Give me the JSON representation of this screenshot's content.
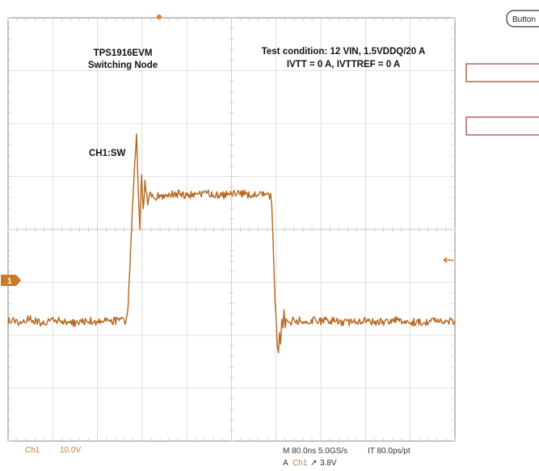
{
  "chart_data": {
    "type": "line",
    "title": "",
    "xlabel": "",
    "ylabel": "",
    "xlim": [
      0,
      800
    ],
    "ylim": [
      -11.3,
      28.7
    ],
    "grid": true,
    "grid_divisions": {
      "x": 10,
      "y": 8
    },
    "series": [
      {
        "color": "#b5651d",
        "x": [
          0,
          20,
          40,
          60,
          80,
          100,
          120,
          140,
          160,
          180,
          210,
          215,
          218,
          221,
          224,
          227,
          230,
          233,
          236,
          239,
          242,
          245,
          250,
          255,
          260,
          270,
          280,
          300,
          320,
          340,
          360,
          380,
          400,
          420,
          440,
          460,
          470,
          472,
          474,
          476,
          478,
          480,
          482,
          484,
          486,
          488,
          490,
          492,
          494,
          496,
          498,
          500,
          502,
          505,
          510,
          515,
          520,
          530,
          540,
          560,
          580,
          600,
          620,
          640,
          660,
          680,
          700,
          720,
          740,
          760,
          780,
          800
        ],
        "y": [
          0.1,
          0.0,
          0.2,
          -0.1,
          0.1,
          0.0,
          -0.2,
          0.1,
          0.0,
          0.1,
          0.0,
          1.5,
          5.0,
          9.0,
          12.0,
          15.3,
          18.0,
          12.0,
          9.0,
          14.0,
          10.5,
          13.2,
          11.0,
          12.2,
          11.5,
          12.0,
          11.8,
          12.1,
          11.9,
          12.0,
          12.1,
          11.9,
          12.0,
          12.1,
          11.9,
          12.0,
          11.8,
          11.0,
          8.0,
          5.0,
          2.0,
          0.0,
          -2.0,
          -3.0,
          -1.0,
          -2.2,
          0.5,
          -0.8,
          0.8,
          -0.4,
          0.5,
          -0.2,
          0.2,
          -0.1,
          0.1,
          0.0,
          0.1,
          -0.1,
          0.1,
          0.0,
          0.1,
          -0.1,
          0.0,
          0.1,
          -0.1,
          0.0,
          0.1,
          0.0,
          -0.1,
          0.1,
          0.0,
          0.1
        ]
      }
    ],
    "annotations": {
      "device_title": [
        "TPS1916EVM",
        "Switching Node"
      ],
      "test_condition": [
        "Test condition: 12 VIN, 1.5VDDQ/20 A",
        "IVTT = 0 A, IVTTREF = 0 A"
      ],
      "channel_label": "CH1:SW"
    },
    "channel_marker": "1"
  },
  "readout": {
    "channel": "Ch1",
    "scale": "10.0V",
    "timebase": "M 80.0ns 5.0GS/s",
    "record": "IT 80.0ps/pt",
    "trigger_prefix": "A",
    "trigger_channel": "Ch1",
    "trigger_slope": "↗",
    "trigger_level": "3.8V"
  },
  "side_panel": {
    "button_label": "Button"
  },
  "colors": {
    "trace": "#b5651d",
    "grid": "#c9c9c9",
    "frame": "#9a9a9a",
    "accent": "#c97a2a",
    "side_box": "#a04030"
  }
}
